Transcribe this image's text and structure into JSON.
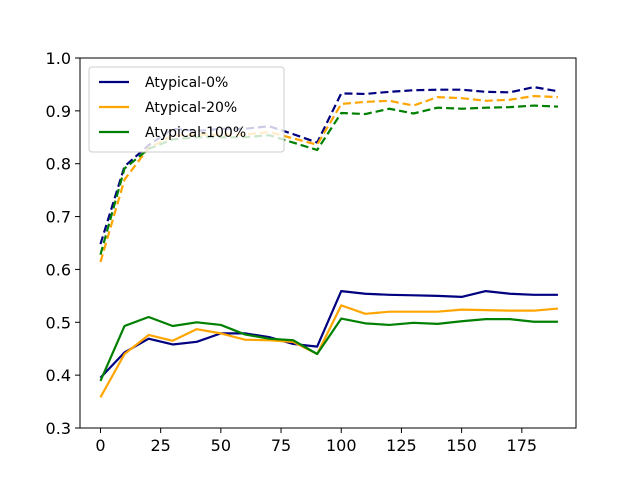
{
  "chart_data": {
    "type": "line",
    "title": "",
    "xlabel": "",
    "ylabel": "",
    "xlim": [
      -8.5,
      197.5
    ],
    "ylim": [
      0.3,
      1.0
    ],
    "xticks": [
      0,
      25,
      50,
      75,
      100,
      125,
      150,
      175
    ],
    "yticks": [
      0.3,
      0.4,
      0.5,
      0.6,
      0.7,
      0.8,
      0.9,
      1.0
    ],
    "xtick_labels": [
      "0",
      "25",
      "50",
      "75",
      "100",
      "125",
      "150",
      "175"
    ],
    "ytick_labels": [
      "0.3",
      "0.4",
      "0.5",
      "0.6",
      "0.7",
      "0.8",
      "0.9",
      "1.0"
    ],
    "grid": false,
    "legend_position": "top-left",
    "x": [
      0,
      10,
      20,
      30,
      40,
      50,
      60,
      70,
      80,
      90,
      100,
      110,
      120,
      130,
      140,
      150,
      160,
      170,
      180,
      190
    ],
    "series": [
      {
        "name": "Atypical-0%",
        "color": "#000080",
        "style": "solid",
        "values": [
          0.395,
          0.443,
          0.469,
          0.458,
          0.463,
          0.479,
          0.479,
          0.472,
          0.459,
          0.454,
          0.559,
          0.554,
          0.552,
          0.551,
          0.55,
          0.548,
          0.559,
          0.554,
          0.552,
          0.552
        ]
      },
      {
        "name": "Atypical-20%",
        "color": "#FFA500",
        "style": "solid",
        "values": [
          0.358,
          0.44,
          0.476,
          0.465,
          0.487,
          0.479,
          0.467,
          0.466,
          0.463,
          0.44,
          0.532,
          0.516,
          0.52,
          0.52,
          0.52,
          0.524,
          0.523,
          0.522,
          0.522,
          0.526
        ]
      },
      {
        "name": "Atypical-100%",
        "color": "#008000",
        "style": "solid",
        "values": [
          0.389,
          0.493,
          0.51,
          0.493,
          0.5,
          0.495,
          0.477,
          0.469,
          0.466,
          0.44,
          0.507,
          0.498,
          0.495,
          0.499,
          0.497,
          0.502,
          0.506,
          0.506,
          0.501,
          0.501
        ]
      },
      {
        "name": "",
        "color": "#000080",
        "style": "dashed",
        "values": [
          0.648,
          0.795,
          0.835,
          0.866,
          0.862,
          0.866,
          0.866,
          0.871,
          0.856,
          0.84,
          0.933,
          0.932,
          0.936,
          0.939,
          0.94,
          0.94,
          0.936,
          0.935,
          0.945,
          0.937
        ]
      },
      {
        "name": "",
        "color": "#FFA500",
        "style": "dashed",
        "values": [
          0.614,
          0.77,
          0.83,
          0.853,
          0.855,
          0.855,
          0.855,
          0.86,
          0.848,
          0.836,
          0.913,
          0.917,
          0.919,
          0.91,
          0.926,
          0.924,
          0.919,
          0.921,
          0.928,
          0.926
        ]
      },
      {
        "name": "",
        "color": "#008000",
        "style": "dashed",
        "values": [
          0.628,
          0.791,
          0.828,
          0.846,
          0.85,
          0.85,
          0.85,
          0.854,
          0.84,
          0.826,
          0.896,
          0.894,
          0.904,
          0.895,
          0.906,
          0.904,
          0.906,
          0.907,
          0.91,
          0.908
        ]
      }
    ]
  }
}
